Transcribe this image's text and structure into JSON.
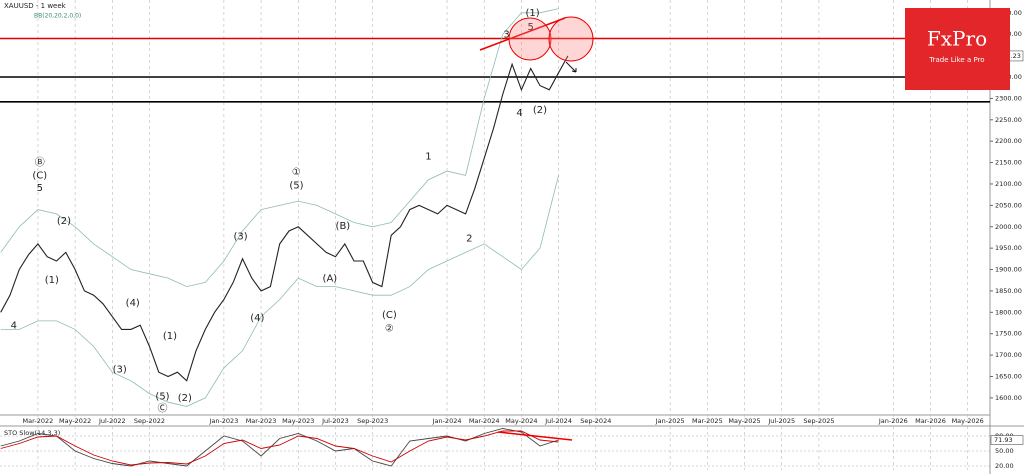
{
  "chart_data": {
    "type": "line",
    "title": "XAUUSD - 1 week",
    "subtitle": "BB(20,20,2,0,0)",
    "logo": {
      "name": "FxPro",
      "tagline": "Trade Like a Pro"
    },
    "xlim": [
      -0.04,
      53.2
    ],
    "ylim": [
      1560,
      2530
    ],
    "grid": true,
    "xticks": [
      {
        "value": 2,
        "label": "Mar-2022"
      },
      {
        "value": 4,
        "label": "May-2022"
      },
      {
        "value": 6,
        "label": "Jul-2022"
      },
      {
        "value": 8,
        "label": "Sep-2022"
      },
      {
        "value": 12,
        "label": "Jan-2023"
      },
      {
        "value": 14,
        "label": "Mar-2023"
      },
      {
        "value": 16,
        "label": "May-2023"
      },
      {
        "value": 18,
        "label": "Jul-2023"
      },
      {
        "value": 20,
        "label": "Sep-2023"
      },
      {
        "value": 24,
        "label": "Jan-2024"
      },
      {
        "value": 26,
        "label": "Mar-2024"
      },
      {
        "value": 28,
        "label": "May-2024"
      },
      {
        "value": 30,
        "label": "Jul-2024"
      },
      {
        "value": 32,
        "label": "Sep-2024"
      },
      {
        "value": 36,
        "label": "Jan-2025"
      },
      {
        "value": 38,
        "label": "Mar-2025"
      },
      {
        "value": 40,
        "label": "May-2025"
      },
      {
        "value": 42,
        "label": "Jul-2025"
      },
      {
        "value": 44,
        "label": "Sep-2025"
      },
      {
        "value": 48,
        "label": "Jan-2026"
      },
      {
        "value": 50,
        "label": "Mar-2026"
      },
      {
        "value": 52,
        "label": "May-2026"
      }
    ],
    "yticks": [
      {
        "value": 1600,
        "label": "1600.00"
      },
      {
        "value": 1650,
        "label": "1650.00"
      },
      {
        "value": 1700,
        "label": "1700.00"
      },
      {
        "value": 1750,
        "label": "1750.00"
      },
      {
        "value": 1800,
        "label": "1800.00"
      },
      {
        "value": 1850,
        "label": "1850.00"
      },
      {
        "value": 1900,
        "label": "1900.00"
      },
      {
        "value": 1950,
        "label": "1950.00"
      },
      {
        "value": 2000,
        "label": "2000.00"
      },
      {
        "value": 2050,
        "label": "2050.00"
      },
      {
        "value": 2100,
        "label": "2100.00"
      },
      {
        "value": 2150,
        "label": "2150.00"
      },
      {
        "value": 2200,
        "label": "2200.00"
      },
      {
        "value": 2250,
        "label": "2250.00"
      },
      {
        "value": 2300,
        "label": "2300.00"
      },
      {
        "value": 2350,
        "label": "2350.00"
      },
      {
        "value": 2400,
        "label": "2400.00"
      },
      {
        "value": 2450,
        "label": "2450.00"
      },
      {
        "value": 2500,
        "label": "2500.00"
      }
    ],
    "series": [
      {
        "color": "#222222",
        "x": [
          0,
          0.5,
          1,
          1.5,
          2,
          2.5,
          3,
          3.5,
          4,
          4.5,
          5,
          5.5,
          6,
          6.5,
          7,
          7.5,
          8,
          8.5,
          9,
          9.5,
          10,
          10.5,
          11,
          11.5,
          12,
          12.5,
          13,
          13.5,
          14,
          14.5,
          15,
          15.5,
          16,
          16.5,
          17,
          17.5,
          18,
          18.5,
          19,
          19.5,
          20,
          20.5,
          21,
          21.5,
          22,
          22.5,
          23,
          23.5,
          24,
          24.5,
          25,
          25.5,
          26,
          26.5,
          27,
          27.5,
          28,
          28.5,
          29,
          29.5,
          30,
          30.5
        ],
        "values": [
          1800,
          1840,
          1900,
          1935,
          1960,
          1930,
          1920,
          1940,
          1900,
          1850,
          1840,
          1820,
          1790,
          1760,
          1760,
          1770,
          1720,
          1660,
          1650,
          1660,
          1640,
          1710,
          1760,
          1800,
          1830,
          1870,
          1925,
          1880,
          1850,
          1860,
          1960,
          1990,
          2000,
          1980,
          1960,
          1940,
          1930,
          1960,
          1920,
          1920,
          1870,
          1860,
          1980,
          2000,
          2040,
          2050,
          2040,
          2030,
          2050,
          2040,
          2030,
          2090,
          2160,
          2230,
          2310,
          2380,
          2320,
          2370,
          2330,
          2320,
          2360,
          2399.23
        ]
      },
      {
        "color": "#8fbcb0",
        "x": [
          0,
          1,
          2,
          3,
          4,
          5,
          6,
          7,
          8,
          9,
          10,
          11,
          12,
          13,
          14,
          15,
          16,
          17,
          18,
          19,
          20,
          21,
          22,
          23,
          24,
          25,
          26,
          27,
          28,
          29,
          30
        ],
        "values": [
          1940,
          2000,
          2040,
          2030,
          2000,
          1960,
          1930,
          1900,
          1890,
          1880,
          1860,
          1870,
          1920,
          1990,
          2040,
          2050,
          2060,
          2050,
          2030,
          2010,
          2000,
          2010,
          2060,
          2110,
          2130,
          2120,
          2300,
          2450,
          2500,
          2500,
          2510
        ]
      },
      {
        "color": "#8fbcb0",
        "x": [
          0,
          1,
          2,
          3,
          4,
          5,
          6,
          7,
          8,
          9,
          10,
          11,
          12,
          13,
          14,
          15,
          16,
          17,
          18,
          19,
          20,
          21,
          22,
          23,
          24,
          25,
          26,
          27,
          28,
          29,
          30
        ],
        "values": [
          1760,
          1760,
          1780,
          1780,
          1760,
          1720,
          1660,
          1640,
          1610,
          1590,
          1580,
          1600,
          1670,
          1710,
          1790,
          1830,
          1880,
          1860,
          1860,
          1850,
          1840,
          1840,
          1860,
          1900,
          1920,
          1940,
          1960,
          1930,
          1900,
          1950,
          2120
        ]
      }
    ],
    "levels": [
      {
        "value": 2440,
        "color": "#e00000"
      },
      {
        "value": 2350,
        "color": "#000000"
      },
      {
        "value": 2292,
        "color": "#000000"
      }
    ],
    "annotations": [
      {
        "text": "Ⓑ",
        "x": 2.1,
        "y": 2150
      },
      {
        "text": "(C)",
        "x": 2.1,
        "y": 2120
      },
      {
        "text": "5",
        "x": 2.1,
        "y": 2091
      },
      {
        "text": "4",
        "x": 0.7,
        "y": 1769
      },
      {
        "text": "(1)",
        "x": 2.75,
        "y": 1876
      },
      {
        "text": "(2)",
        "x": 3.4,
        "y": 2014
      },
      {
        "text": "(3)",
        "x": 6.4,
        "y": 1666
      },
      {
        "text": "(4)",
        "x": 7.1,
        "y": 1822
      },
      {
        "text": "(5)",
        "x": 8.7,
        "y": 1603
      },
      {
        "text": "Ⓒ",
        "x": 8.7,
        "y": 1575
      },
      {
        "text": "(1)",
        "x": 9.1,
        "y": 1745
      },
      {
        "text": "(2)",
        "x": 9.9,
        "y": 1600
      },
      {
        "text": "(3)",
        "x": 12.9,
        "y": 1977
      },
      {
        "text": "(4)",
        "x": 13.8,
        "y": 1787
      },
      {
        "text": "①",
        "x": 15.9,
        "y": 2128
      },
      {
        "text": "(5)",
        "x": 15.9,
        "y": 2096
      },
      {
        "text": "(B)",
        "x": 18.4,
        "y": 2002
      },
      {
        "text": "(A)",
        "x": 17.7,
        "y": 1879
      },
      {
        "text": "(C)",
        "x": 20.9,
        "y": 1794
      },
      {
        "text": "②",
        "x": 20.9,
        "y": 1762
      },
      {
        "text": "1",
        "x": 23,
        "y": 2164
      },
      {
        "text": "2",
        "x": 25.2,
        "y": 1972
      },
      {
        "text": "3",
        "x": 27.2,
        "y": 2449
      },
      {
        "text": "(1)",
        "x": 28.6,
        "y": 2500
      },
      {
        "text": "5",
        "x": 28.5,
        "y": 2467
      },
      {
        "text": "4",
        "x": 27.9,
        "y": 2266
      },
      {
        "text": "(2)",
        "x": 29,
        "y": 2273
      }
    ],
    "stochastic": {
      "title": "STO Slow(14,3,3)",
      "ylim": [
        12,
        100
      ],
      "yticks": [
        {
          "value": 20,
          "label": "20.00"
        },
        {
          "value": 50,
          "label": "50.00"
        },
        {
          "value": 80,
          "label": "80.00"
        }
      ],
      "series": [
        {
          "color": "#444444",
          "x": [
            0,
            1,
            2,
            3,
            4,
            5,
            6,
            7,
            8,
            9,
            10,
            11,
            12,
            13,
            14,
            15,
            16,
            17,
            18,
            19,
            20,
            21,
            22,
            23,
            24,
            25,
            26,
            27,
            28,
            29,
            30
          ],
          "values": [
            60,
            70,
            85,
            80,
            50,
            35,
            25,
            20,
            30,
            25,
            20,
            50,
            80,
            70,
            40,
            75,
            85,
            70,
            50,
            55,
            30,
            20,
            70,
            75,
            80,
            70,
            85,
            95,
            88,
            60,
            71.93
          ]
        },
        {
          "color": "#cc0000",
          "x": [
            0,
            1,
            2,
            3,
            4,
            5,
            6,
            7,
            8,
            9,
            10,
            11,
            12,
            13,
            14,
            15,
            16,
            17,
            18,
            19,
            20,
            21,
            22,
            23,
            24,
            25,
            26,
            27,
            28,
            29,
            30
          ],
          "values": [
            55,
            65,
            78,
            80,
            60,
            42,
            30,
            22,
            26,
            27,
            24,
            40,
            65,
            72,
            55,
            62,
            80,
            75,
            60,
            55,
            40,
            28,
            50,
            70,
            78,
            72,
            80,
            90,
            90,
            72,
            68
          ]
        }
      ]
    }
  }
}
